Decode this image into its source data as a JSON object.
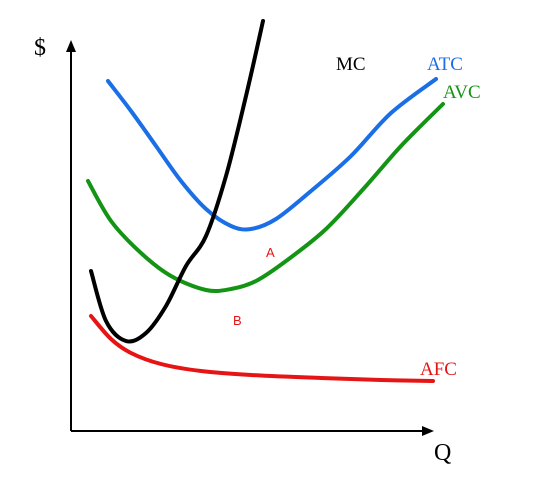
{
  "chart_data": {
    "type": "line",
    "xlabel": "Q",
    "ylabel": "$",
    "grid": false,
    "ticks": false,
    "series": [
      {
        "name": "MC",
        "color": "#000000",
        "points": [
          [
            20,
            160
          ],
          [
            35,
            110
          ],
          [
            55,
            90
          ],
          [
            75,
            98
          ],
          [
            95,
            125
          ],
          [
            115,
            165
          ],
          [
            135,
            195
          ],
          [
            155,
            255
          ],
          [
            175,
            335
          ],
          [
            192,
            410
          ]
        ]
      },
      {
        "name": "ATC",
        "color": "#1a6ee6",
        "points": [
          [
            37,
            350
          ],
          [
            60,
            320
          ],
          [
            85,
            285
          ],
          [
            110,
            250
          ],
          [
            135,
            222
          ],
          [
            160,
            205
          ],
          [
            180,
            202
          ],
          [
            205,
            212
          ],
          [
            240,
            240
          ],
          [
            280,
            275
          ],
          [
            320,
            318
          ],
          [
            365,
            352
          ]
        ]
      },
      {
        "name": "AVC",
        "color": "#149414",
        "points": [
          [
            17,
            250
          ],
          [
            40,
            210
          ],
          [
            70,
            178
          ],
          [
            100,
            155
          ],
          [
            135,
            141
          ],
          [
            160,
            142
          ],
          [
            185,
            150
          ],
          [
            215,
            170
          ],
          [
            255,
            202
          ],
          [
            295,
            245
          ],
          [
            330,
            285
          ],
          [
            372,
            327
          ]
        ]
      },
      {
        "name": "AFC",
        "color": "#e61414",
        "points": [
          [
            20,
            115
          ],
          [
            40,
            92
          ],
          [
            60,
            78
          ],
          [
            90,
            67
          ],
          [
            130,
            60
          ],
          [
            180,
            56
          ],
          [
            250,
            53
          ],
          [
            310,
            51
          ],
          [
            362,
            50
          ]
        ]
      }
    ],
    "points": [
      {
        "label": "A",
        "x": 199,
        "y": 194,
        "color": "#e61414"
      },
      {
        "label": "B",
        "x": 166,
        "y": 124,
        "color": "#e61414"
      }
    ]
  }
}
